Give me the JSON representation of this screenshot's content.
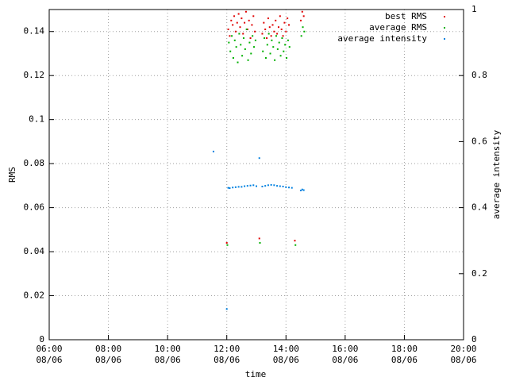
{
  "chart_data": {
    "type": "scatter",
    "xlabel": "time",
    "ylabel": "RMS",
    "y2label": "average intensity",
    "xlim": [
      6,
      20
    ],
    "xticks": [
      {
        "value": 6,
        "label": "06:00\n08/06"
      },
      {
        "value": 8,
        "label": "08:00\n08/06"
      },
      {
        "value": 10,
        "label": "10:00\n08/06"
      },
      {
        "value": 12,
        "label": "12:00\n08/06"
      },
      {
        "value": 14,
        "label": "14:00\n08/06"
      },
      {
        "value": 16,
        "label": "16:00\n08/06"
      },
      {
        "value": 18,
        "label": "18:00\n08/06"
      },
      {
        "value": 20,
        "label": "20:00\n08/06"
      }
    ],
    "ylim": [
      0,
      0.15
    ],
    "yticks": [
      0,
      0.02,
      0.04,
      0.06,
      0.08,
      0.1,
      0.12,
      0.14
    ],
    "y2lim": [
      0,
      1
    ],
    "y2ticks": [
      0,
      0.2,
      0.4,
      0.6,
      0.8,
      1
    ],
    "grid": true,
    "legend": "top-right",
    "series": [
      {
        "name": "best RMS",
        "color": "#e00000",
        "x": [
          12.0,
          12.05,
          12.1,
          12.15,
          12.2,
          12.25,
          12.3,
          12.35,
          12.4,
          12.45,
          12.5,
          12.55,
          12.6,
          12.65,
          12.7,
          12.75,
          12.8,
          12.85,
          12.9,
          12.95,
          13.1,
          13.2,
          13.25,
          13.3,
          13.35,
          13.4,
          13.45,
          13.5,
          13.55,
          13.6,
          13.65,
          13.7,
          13.75,
          13.8,
          13.85,
          13.9,
          13.95,
          14.0,
          14.05,
          14.1,
          14.3,
          14.5,
          14.55,
          14.6
        ],
        "values": [
          0.044,
          0.141,
          0.138,
          0.145,
          0.143,
          0.147,
          0.14,
          0.144,
          0.148,
          0.142,
          0.146,
          0.139,
          0.144,
          0.149,
          0.141,
          0.145,
          0.137,
          0.143,
          0.147,
          0.14,
          0.046,
          0.139,
          0.144,
          0.141,
          0.137,
          0.146,
          0.142,
          0.138,
          0.143,
          0.14,
          0.145,
          0.139,
          0.142,
          0.147,
          0.141,
          0.138,
          0.144,
          0.14,
          0.146,
          0.143,
          0.045,
          0.145,
          0.149,
          0.147
        ]
      },
      {
        "name": "average RMS",
        "color": "#00b000",
        "x": [
          12.02,
          12.07,
          12.12,
          12.17,
          12.22,
          12.27,
          12.32,
          12.37,
          12.42,
          12.47,
          12.52,
          12.57,
          12.62,
          12.67,
          12.72,
          12.77,
          12.82,
          12.87,
          12.92,
          12.97,
          13.12,
          13.22,
          13.27,
          13.32,
          13.37,
          13.42,
          13.47,
          13.52,
          13.57,
          13.62,
          13.67,
          13.72,
          13.77,
          13.82,
          13.87,
          13.92,
          13.97,
          14.02,
          14.07,
          14.12,
          14.32,
          14.52,
          14.57,
          14.62
        ],
        "values": [
          0.043,
          0.135,
          0.131,
          0.138,
          0.128,
          0.136,
          0.133,
          0.126,
          0.139,
          0.134,
          0.129,
          0.137,
          0.132,
          0.141,
          0.127,
          0.135,
          0.13,
          0.138,
          0.133,
          0.136,
          0.044,
          0.131,
          0.137,
          0.128,
          0.134,
          0.139,
          0.13,
          0.136,
          0.133,
          0.127,
          0.138,
          0.132,
          0.135,
          0.129,
          0.137,
          0.131,
          0.134,
          0.128,
          0.136,
          0.133,
          0.043,
          0.138,
          0.142,
          0.14
        ]
      },
      {
        "name": "average intensity",
        "color": "#0080e0",
        "axis": "y2",
        "x": [
          11.55,
          12.0,
          12.05,
          12.1,
          12.2,
          12.3,
          12.4,
          12.5,
          12.6,
          12.7,
          12.8,
          12.9,
          13.0,
          13.1,
          13.2,
          13.3,
          13.4,
          13.5,
          13.6,
          13.7,
          13.8,
          13.9,
          14.0,
          14.1,
          14.2,
          14.5,
          14.55,
          14.6
        ],
        "values": [
          0.57,
          0.093,
          0.46,
          0.459,
          0.461,
          0.462,
          0.463,
          0.463,
          0.465,
          0.466,
          0.467,
          0.468,
          0.465,
          0.55,
          0.464,
          0.466,
          0.468,
          0.469,
          0.468,
          0.466,
          0.465,
          0.464,
          0.462,
          0.461,
          0.46,
          0.452,
          0.455,
          0.453
        ]
      }
    ]
  }
}
